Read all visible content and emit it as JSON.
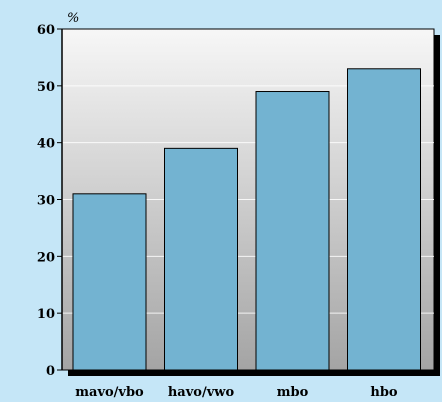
{
  "chart_data": {
    "type": "bar",
    "unit_label": "%",
    "categories": [
      "mavo/vbo",
      "havo/vwo",
      "mbo",
      "hbo"
    ],
    "values": [
      31,
      39,
      49,
      53
    ],
    "ylim": [
      0,
      60
    ],
    "yticks": [
      0,
      10,
      20,
      30,
      40,
      50,
      60
    ],
    "grid": true,
    "colors": {
      "background": "#c5e6f7",
      "bar": "#73b3d1",
      "plot_top": "#f7f7f7",
      "plot_bottom": "#a4a4a4"
    }
  }
}
